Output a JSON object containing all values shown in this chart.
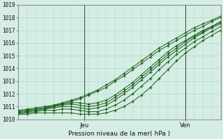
{
  "title": "Pression niveau de la mer( hPa )",
  "ylabel_left": [
    "1019",
    "1018",
    "1017",
    "1016",
    "1015",
    "1014",
    "1013",
    "1012",
    "1011",
    "1010"
  ],
  "ylim": [
    1010.0,
    1019.0
  ],
  "xlim": [
    0,
    46
  ],
  "xtick_positions": [
    15,
    38
  ],
  "xtick_labels": [
    "Jeu",
    "Ven"
  ],
  "background_color": "#d5ede4",
  "grid_color": "#b0d8c8",
  "line_color": "#1a5c1a",
  "vline_color": "#336633",
  "lines": [
    [
      1010.6,
      1010.7,
      1010.8,
      1010.9,
      1011.1,
      1011.3,
      1011.5,
      1011.7,
      1012.0,
      1012.3,
      1012.7,
      1013.1,
      1013.6,
      1014.1,
      1014.6,
      1015.1,
      1015.6,
      1016.0,
      1016.4,
      1016.8,
      1017.2,
      1017.5,
      1017.8,
      1018.1,
      1018.3
    ],
    [
      1010.5,
      1010.6,
      1010.7,
      1010.8,
      1011.0,
      1011.2,
      1011.4,
      1011.6,
      1011.9,
      1012.2,
      1012.5,
      1013.0,
      1013.4,
      1013.9,
      1014.4,
      1014.9,
      1015.4,
      1015.8,
      1016.2,
      1016.6,
      1017.0,
      1017.3,
      1017.7,
      1018.0,
      1018.2
    ],
    [
      1010.7,
      1010.8,
      1010.9,
      1011.0,
      1011.1,
      1011.2,
      1011.3,
      1011.3,
      1011.2,
      1011.3,
      1011.5,
      1011.9,
      1012.4,
      1012.9,
      1013.5,
      1014.1,
      1014.7,
      1015.3,
      1015.8,
      1016.2,
      1016.6,
      1017.0,
      1017.3,
      1017.7,
      1018.0
    ],
    [
      1010.6,
      1010.7,
      1010.8,
      1010.9,
      1011.0,
      1011.1,
      1011.2,
      1011.1,
      1011.0,
      1011.1,
      1011.3,
      1011.7,
      1012.2,
      1012.7,
      1013.3,
      1013.9,
      1014.5,
      1015.1,
      1015.6,
      1016.1,
      1016.5,
      1016.9,
      1017.3,
      1017.6,
      1017.9
    ],
    [
      1010.5,
      1010.6,
      1010.7,
      1010.8,
      1010.9,
      1011.0,
      1011.0,
      1010.9,
      1010.8,
      1010.9,
      1011.1,
      1011.5,
      1012.0,
      1012.5,
      1013.1,
      1013.7,
      1014.3,
      1014.9,
      1015.4,
      1015.9,
      1016.4,
      1016.8,
      1017.2,
      1017.5,
      1017.8
    ],
    [
      1010.4,
      1010.5,
      1010.6,
      1010.7,
      1010.7,
      1010.8,
      1010.8,
      1010.7,
      1010.6,
      1010.6,
      1010.8,
      1011.1,
      1011.5,
      1012.0,
      1012.6,
      1013.2,
      1013.9,
      1014.5,
      1015.1,
      1015.6,
      1016.1,
      1016.5,
      1016.9,
      1017.3,
      1017.6
    ],
    [
      1010.4,
      1010.4,
      1010.5,
      1010.5,
      1010.5,
      1010.5,
      1010.5,
      1010.4,
      1010.4,
      1010.4,
      1010.5,
      1010.7,
      1011.0,
      1011.4,
      1011.9,
      1012.5,
      1013.2,
      1013.9,
      1014.6,
      1015.2,
      1015.7,
      1016.2,
      1016.6,
      1017.0,
      1017.4
    ]
  ],
  "n_x_per_line": 25,
  "x_step": 2
}
